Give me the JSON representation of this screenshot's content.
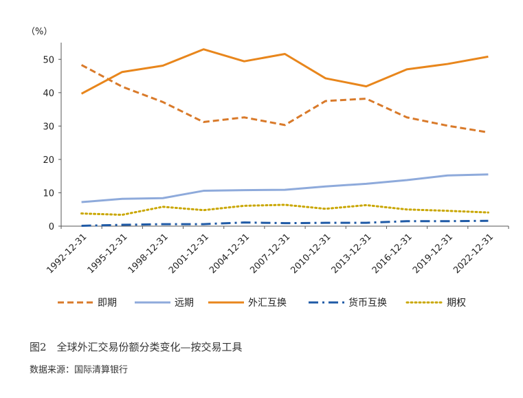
{
  "caption": "图2　全球外汇交易份额分类变化—按交易工具",
  "source": "数据来源：国际清算银行",
  "chart_data": {
    "type": "line",
    "ylabel": "（%）",
    "ylim": [
      0,
      55
    ],
    "yticks": [
      0,
      10,
      20,
      30,
      40,
      50
    ],
    "grid": false,
    "legend_position": "bottom",
    "categories": [
      "1992-12-31",
      "1995-12-31",
      "1998-12-31",
      "2001-12-31",
      "2004-12-31",
      "2007-12-31",
      "2010-12-31",
      "2013-12-31",
      "2016-12-31",
      "2019-12-31",
      "2022-12-31"
    ],
    "series": [
      {
        "name": "即期",
        "color": "#d97a2a",
        "style": "dashed",
        "values": [
          48.3,
          41.8,
          37.2,
          31.2,
          32.6,
          30.3,
          37.5,
          38.2,
          32.6,
          30.1,
          28.1
        ]
      },
      {
        "name": "远期",
        "color": "#8eaadb",
        "style": "solid",
        "values": [
          7.2,
          8.2,
          8.4,
          10.6,
          10.8,
          10.9,
          11.9,
          12.7,
          13.8,
          15.2,
          15.5
        ]
      },
      {
        "name": "外汇互换",
        "color": "#e8861c",
        "style": "solid",
        "values": [
          39.7,
          46.2,
          48.1,
          53.0,
          49.4,
          51.6,
          44.3,
          41.9,
          47.0,
          48.6,
          50.8
        ]
      },
      {
        "name": "货币互换",
        "color": "#1f5aa6",
        "style": "dashdot",
        "values": [
          0.1,
          0.4,
          0.6,
          0.6,
          1.1,
          0.9,
          1.0,
          1.0,
          1.5,
          1.5,
          1.6
        ]
      },
      {
        "name": "期权",
        "color": "#c9a600",
        "style": "dotted",
        "values": [
          3.8,
          3.4,
          5.8,
          4.8,
          6.1,
          6.4,
          5.2,
          6.3,
          5.0,
          4.6,
          4.1
        ]
      }
    ]
  }
}
